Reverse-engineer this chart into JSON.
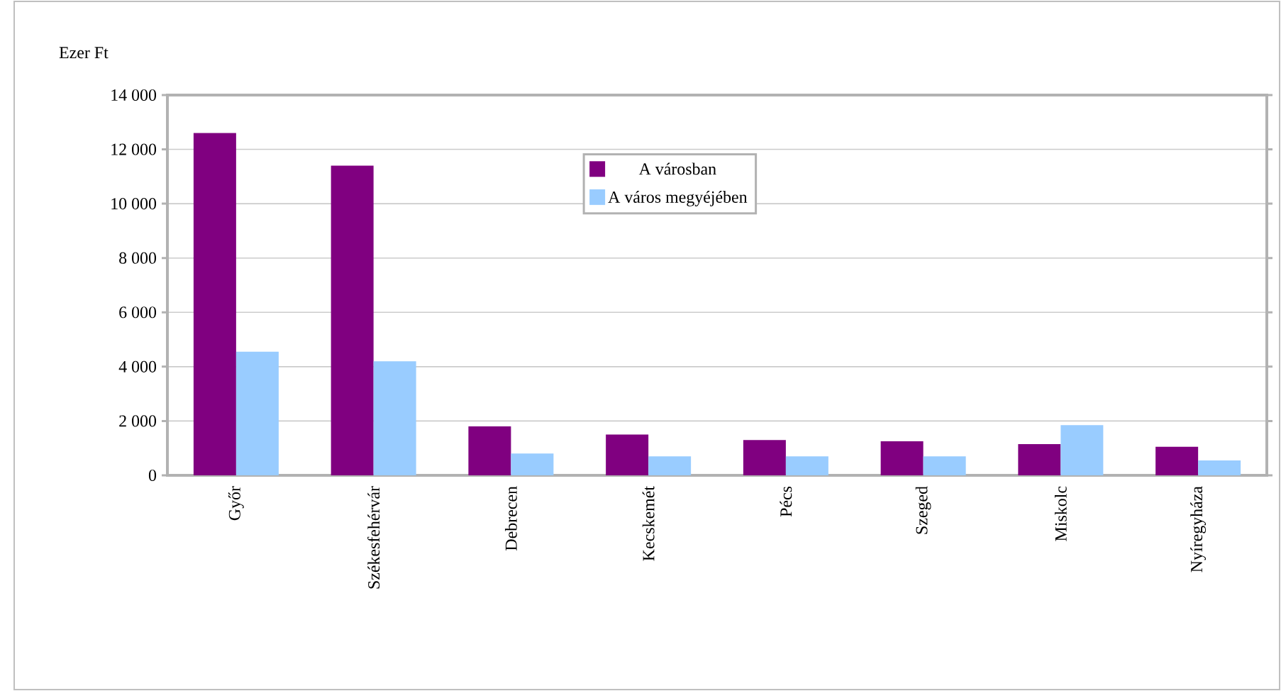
{
  "chart_data": {
    "type": "bar",
    "ylabel": "Ezer Ft",
    "categories": [
      "Győr",
      "Székesfehérvár",
      "Debrecen",
      "Kecskemét",
      "Pécs",
      "Szeged",
      "Miskolc",
      "Nyíregyháza"
    ],
    "series": [
      {
        "name": "A városban",
        "color": "#800080",
        "values": [
          12600,
          11400,
          1800,
          1500,
          1300,
          1250,
          1150,
          1050
        ]
      },
      {
        "name": "A város megyéjében",
        "color": "#99ccff",
        "values": [
          4550,
          4200,
          800,
          700,
          700,
          700,
          1850,
          550
        ]
      }
    ],
    "ylim": [
      0,
      14000
    ],
    "yticks": [
      0,
      {
        "value": 2000,
        "label": "2 000"
      },
      {
        "value": 4000,
        "label": "4 000"
      },
      {
        "value": 6000,
        "label": "6 000"
      },
      {
        "value": 8000,
        "label": "8 000"
      },
      {
        "value": 10000,
        "label": "10 000"
      },
      {
        "value": 12000,
        "label": "12 000"
      },
      {
        "value": 14000,
        "label": "14 000"
      }
    ],
    "grid": "y",
    "legend": "top"
  }
}
